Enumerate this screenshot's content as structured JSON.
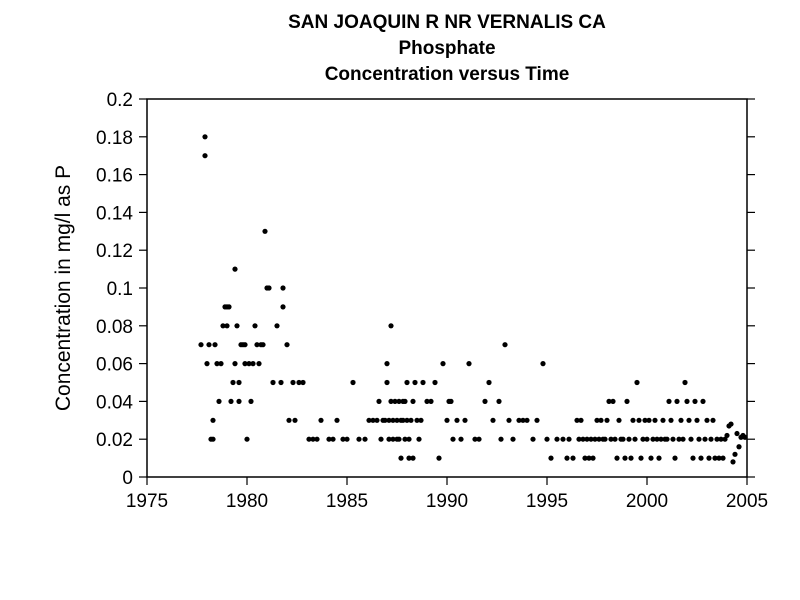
{
  "chart_data": {
    "type": "scatter",
    "title": [
      "SAN JOAQUIN R NR VERNALIS CA",
      "Phosphate",
      "Concentration versus Time"
    ],
    "xlabel": "",
    "ylabel": "Concentration in mg/l as P",
    "xlim": [
      1975,
      2005
    ],
    "ylim": [
      0,
      0.2
    ],
    "xticks": [
      "1975",
      "1980",
      "1985",
      "1990",
      "1995",
      "2000",
      "2005"
    ],
    "yticks": [
      "0",
      "0.02",
      "0.04",
      "0.06",
      "0.08",
      "0.1",
      "0.12",
      "0.14",
      "0.16",
      "0.18",
      "0.2"
    ],
    "grid": false,
    "marker_color": "#000000",
    "points": [
      [
        1977.7,
        0.07
      ],
      [
        1977.9,
        0.18
      ],
      [
        1977.9,
        0.17
      ],
      [
        1978.0,
        0.06
      ],
      [
        1978.1,
        0.07
      ],
      [
        1978.2,
        0.02
      ],
      [
        1978.3,
        0.02
      ],
      [
        1978.3,
        0.03
      ],
      [
        1978.4,
        0.07
      ],
      [
        1978.5,
        0.06
      ],
      [
        1978.6,
        0.04
      ],
      [
        1978.7,
        0.06
      ],
      [
        1978.8,
        0.08
      ],
      [
        1978.9,
        0.09
      ],
      [
        1979.0,
        0.09
      ],
      [
        1979.0,
        0.08
      ],
      [
        1979.1,
        0.09
      ],
      [
        1979.2,
        0.04
      ],
      [
        1979.3,
        0.05
      ],
      [
        1979.4,
        0.11
      ],
      [
        1979.4,
        0.06
      ],
      [
        1979.5,
        0.08
      ],
      [
        1979.6,
        0.05
      ],
      [
        1979.6,
        0.04
      ],
      [
        1979.7,
        0.07
      ],
      [
        1979.8,
        0.07
      ],
      [
        1979.9,
        0.06
      ],
      [
        1979.9,
        0.07
      ],
      [
        1980.0,
        0.02
      ],
      [
        1980.1,
        0.06
      ],
      [
        1980.2,
        0.04
      ],
      [
        1980.3,
        0.06
      ],
      [
        1980.4,
        0.08
      ],
      [
        1980.5,
        0.07
      ],
      [
        1980.6,
        0.06
      ],
      [
        1980.7,
        0.07
      ],
      [
        1980.8,
        0.07
      ],
      [
        1980.9,
        0.13
      ],
      [
        1981.0,
        0.1
      ],
      [
        1981.1,
        0.1
      ],
      [
        1981.3,
        0.05
      ],
      [
        1981.5,
        0.08
      ],
      [
        1981.7,
        0.05
      ],
      [
        1981.8,
        0.1
      ],
      [
        1981.8,
        0.09
      ],
      [
        1982.0,
        0.07
      ],
      [
        1982.1,
        0.03
      ],
      [
        1982.3,
        0.05
      ],
      [
        1982.4,
        0.03
      ],
      [
        1982.6,
        0.05
      ],
      [
        1982.8,
        0.05
      ],
      [
        1983.1,
        0.02
      ],
      [
        1983.3,
        0.02
      ],
      [
        1983.5,
        0.02
      ],
      [
        1983.7,
        0.03
      ],
      [
        1984.1,
        0.02
      ],
      [
        1984.3,
        0.02
      ],
      [
        1984.5,
        0.03
      ],
      [
        1984.8,
        0.02
      ],
      [
        1985.0,
        0.02
      ],
      [
        1985.3,
        0.05
      ],
      [
        1985.6,
        0.02
      ],
      [
        1985.9,
        0.02
      ],
      [
        1986.1,
        0.03
      ],
      [
        1986.3,
        0.03
      ],
      [
        1986.5,
        0.03
      ],
      [
        1986.6,
        0.04
      ],
      [
        1986.7,
        0.02
      ],
      [
        1986.8,
        0.03
      ],
      [
        1986.9,
        0.03
      ],
      [
        1987.0,
        0.06
      ],
      [
        1987.0,
        0.05
      ],
      [
        1987.1,
        0.03
      ],
      [
        1987.1,
        0.02
      ],
      [
        1987.2,
        0.08
      ],
      [
        1987.2,
        0.04
      ],
      [
        1987.3,
        0.03
      ],
      [
        1987.3,
        0.02
      ],
      [
        1987.4,
        0.04
      ],
      [
        1987.5,
        0.03
      ],
      [
        1987.5,
        0.02
      ],
      [
        1987.6,
        0.04
      ],
      [
        1987.6,
        0.02
      ],
      [
        1987.7,
        0.01
      ],
      [
        1987.7,
        0.03
      ],
      [
        1987.8,
        0.04
      ],
      [
        1987.8,
        0.03
      ],
      [
        1987.9,
        0.02
      ],
      [
        1987.9,
        0.04
      ],
      [
        1988.0,
        0.05
      ],
      [
        1988.0,
        0.03
      ],
      [
        1988.1,
        0.02
      ],
      [
        1988.1,
        0.01
      ],
      [
        1988.2,
        0.03
      ],
      [
        1988.3,
        0.04
      ],
      [
        1988.3,
        0.01
      ],
      [
        1988.4,
        0.05
      ],
      [
        1988.5,
        0.03
      ],
      [
        1988.6,
        0.02
      ],
      [
        1988.7,
        0.03
      ],
      [
        1988.8,
        0.05
      ],
      [
        1989.0,
        0.04
      ],
      [
        1989.2,
        0.04
      ],
      [
        1989.4,
        0.05
      ],
      [
        1989.6,
        0.01
      ],
      [
        1989.8,
        0.06
      ],
      [
        1990.0,
        0.03
      ],
      [
        1990.1,
        0.04
      ],
      [
        1990.2,
        0.04
      ],
      [
        1990.3,
        0.02
      ],
      [
        1990.5,
        0.03
      ],
      [
        1990.7,
        0.02
      ],
      [
        1990.9,
        0.03
      ],
      [
        1991.1,
        0.06
      ],
      [
        1991.4,
        0.02
      ],
      [
        1991.6,
        0.02
      ],
      [
        1991.9,
        0.04
      ],
      [
        1992.1,
        0.05
      ],
      [
        1992.3,
        0.03
      ],
      [
        1992.6,
        0.04
      ],
      [
        1992.7,
        0.02
      ],
      [
        1992.9,
        0.07
      ],
      [
        1993.1,
        0.03
      ],
      [
        1993.3,
        0.02
      ],
      [
        1993.6,
        0.03
      ],
      [
        1993.8,
        0.03
      ],
      [
        1994.0,
        0.03
      ],
      [
        1994.3,
        0.02
      ],
      [
        1994.5,
        0.03
      ],
      [
        1994.8,
        0.06
      ],
      [
        1995.0,
        0.02
      ],
      [
        1995.2,
        0.01
      ],
      [
        1995.5,
        0.02
      ],
      [
        1995.8,
        0.02
      ],
      [
        1996.0,
        0.01
      ],
      [
        1996.1,
        0.02
      ],
      [
        1996.3,
        0.01
      ],
      [
        1996.5,
        0.03
      ],
      [
        1996.6,
        0.02
      ],
      [
        1996.7,
        0.03
      ],
      [
        1996.8,
        0.02
      ],
      [
        1996.9,
        0.01
      ],
      [
        1997.0,
        0.02
      ],
      [
        1997.1,
        0.01
      ],
      [
        1997.2,
        0.02
      ],
      [
        1997.3,
        0.01
      ],
      [
        1997.4,
        0.02
      ],
      [
        1997.5,
        0.03
      ],
      [
        1997.6,
        0.02
      ],
      [
        1997.7,
        0.03
      ],
      [
        1997.8,
        0.02
      ],
      [
        1997.9,
        0.02
      ],
      [
        1998.0,
        0.03
      ],
      [
        1998.1,
        0.04
      ],
      [
        1998.2,
        0.02
      ],
      [
        1998.3,
        0.04
      ],
      [
        1998.4,
        0.02
      ],
      [
        1998.5,
        0.01
      ],
      [
        1998.6,
        0.03
      ],
      [
        1998.7,
        0.02
      ],
      [
        1998.8,
        0.02
      ],
      [
        1998.9,
        0.01
      ],
      [
        1999.0,
        0.04
      ],
      [
        1999.1,
        0.02
      ],
      [
        1999.2,
        0.01
      ],
      [
        1999.3,
        0.03
      ],
      [
        1999.4,
        0.02
      ],
      [
        1999.5,
        0.05
      ],
      [
        1999.6,
        0.03
      ],
      [
        1999.7,
        0.01
      ],
      [
        1999.8,
        0.02
      ],
      [
        1999.9,
        0.03
      ],
      [
        2000.0,
        0.02
      ],
      [
        2000.1,
        0.03
      ],
      [
        2000.2,
        0.01
      ],
      [
        2000.3,
        0.02
      ],
      [
        2000.4,
        0.03
      ],
      [
        2000.5,
        0.02
      ],
      [
        2000.6,
        0.01
      ],
      [
        2000.7,
        0.02
      ],
      [
        2000.8,
        0.03
      ],
      [
        2000.9,
        0.02
      ],
      [
        2001.0,
        0.02
      ],
      [
        2001.1,
        0.04
      ],
      [
        2001.2,
        0.03
      ],
      [
        2001.3,
        0.02
      ],
      [
        2001.4,
        0.01
      ],
      [
        2001.5,
        0.04
      ],
      [
        2001.6,
        0.02
      ],
      [
        2001.7,
        0.03
      ],
      [
        2001.8,
        0.02
      ],
      [
        2001.9,
        0.05
      ],
      [
        2002.0,
        0.04
      ],
      [
        2002.1,
        0.03
      ],
      [
        2002.2,
        0.02
      ],
      [
        2002.3,
        0.01
      ],
      [
        2002.4,
        0.04
      ],
      [
        2002.5,
        0.03
      ],
      [
        2002.6,
        0.02
      ],
      [
        2002.7,
        0.01
      ],
      [
        2002.8,
        0.04
      ],
      [
        2002.9,
        0.02
      ],
      [
        2003.0,
        0.03
      ],
      [
        2003.1,
        0.01
      ],
      [
        2003.2,
        0.02
      ],
      [
        2003.3,
        0.03
      ],
      [
        2003.4,
        0.01
      ],
      [
        2003.5,
        0.02
      ],
      [
        2003.6,
        0.01
      ],
      [
        2003.7,
        0.02
      ],
      [
        2003.8,
        0.01
      ],
      [
        2003.9,
        0.02
      ],
      [
        2004.0,
        0.022
      ],
      [
        2004.1,
        0.027
      ],
      [
        2004.2,
        0.028
      ],
      [
        2004.3,
        0.008
      ],
      [
        2004.4,
        0.012
      ],
      [
        2004.5,
        0.023
      ],
      [
        2004.6,
        0.016
      ],
      [
        2004.7,
        0.021
      ],
      [
        2004.8,
        0.022
      ],
      [
        2004.9,
        0.021
      ]
    ]
  }
}
